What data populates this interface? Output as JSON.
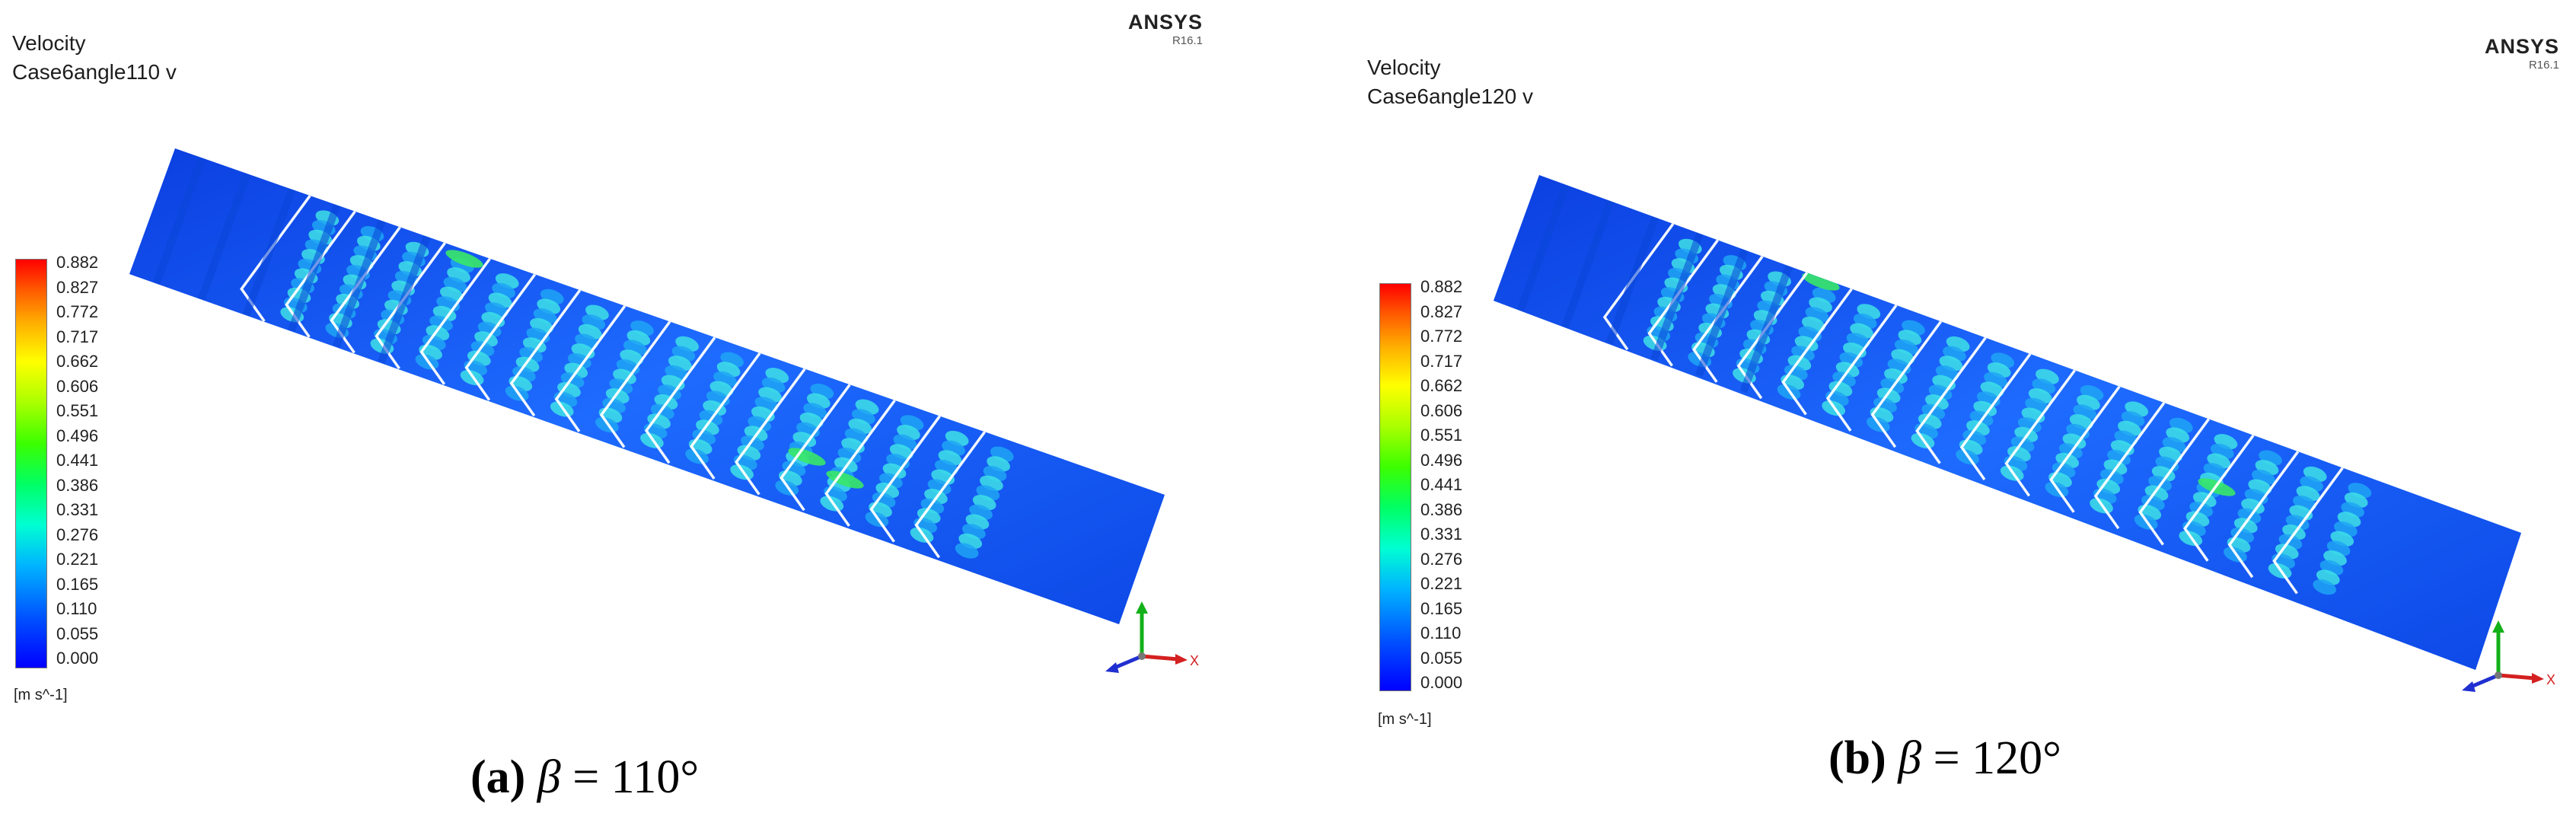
{
  "panels": [
    {
      "id": "a",
      "title": "Velocity",
      "subtitle": "Case6angle110 v",
      "logo": "ANSYS",
      "version": "R16.1",
      "legend_values": [
        "0.882",
        "0.827",
        "0.772",
        "0.717",
        "0.662",
        "0.606",
        "0.551",
        "0.496",
        "0.441",
        "0.386",
        "0.331",
        "0.276",
        "0.221",
        "0.165",
        "0.110",
        "0.055",
        "0.000"
      ],
      "unit": "[m s^-1]",
      "caption_tag": "(a)",
      "caption_symbol": "β",
      "caption_value": "= 110°",
      "axis_x_label": "X"
    },
    {
      "id": "b",
      "title": "Velocity",
      "subtitle": "Case6angle120 v",
      "logo": "ANSYS",
      "version": "R16.1",
      "legend_values": [
        "0.882",
        "0.827",
        "0.772",
        "0.717",
        "0.662",
        "0.606",
        "0.551",
        "0.496",
        "0.441",
        "0.386",
        "0.331",
        "0.276",
        "0.221",
        "0.165",
        "0.110",
        "0.055",
        "0.000"
      ],
      "unit": "[m s^-1]",
      "caption_tag": "(b)",
      "caption_symbol": "β",
      "caption_value": "= 120°",
      "axis_x_label": "X"
    }
  ],
  "colormap": {
    "max_color": "#ff0000",
    "mid_color": "#00ff64",
    "min_color": "#0000ff",
    "plate_base_color": "#1e6bff",
    "plate_channel_color": "#0a46d8",
    "plate_highlight_color": "#3ee0e6",
    "rib_color": "#ffffff"
  }
}
